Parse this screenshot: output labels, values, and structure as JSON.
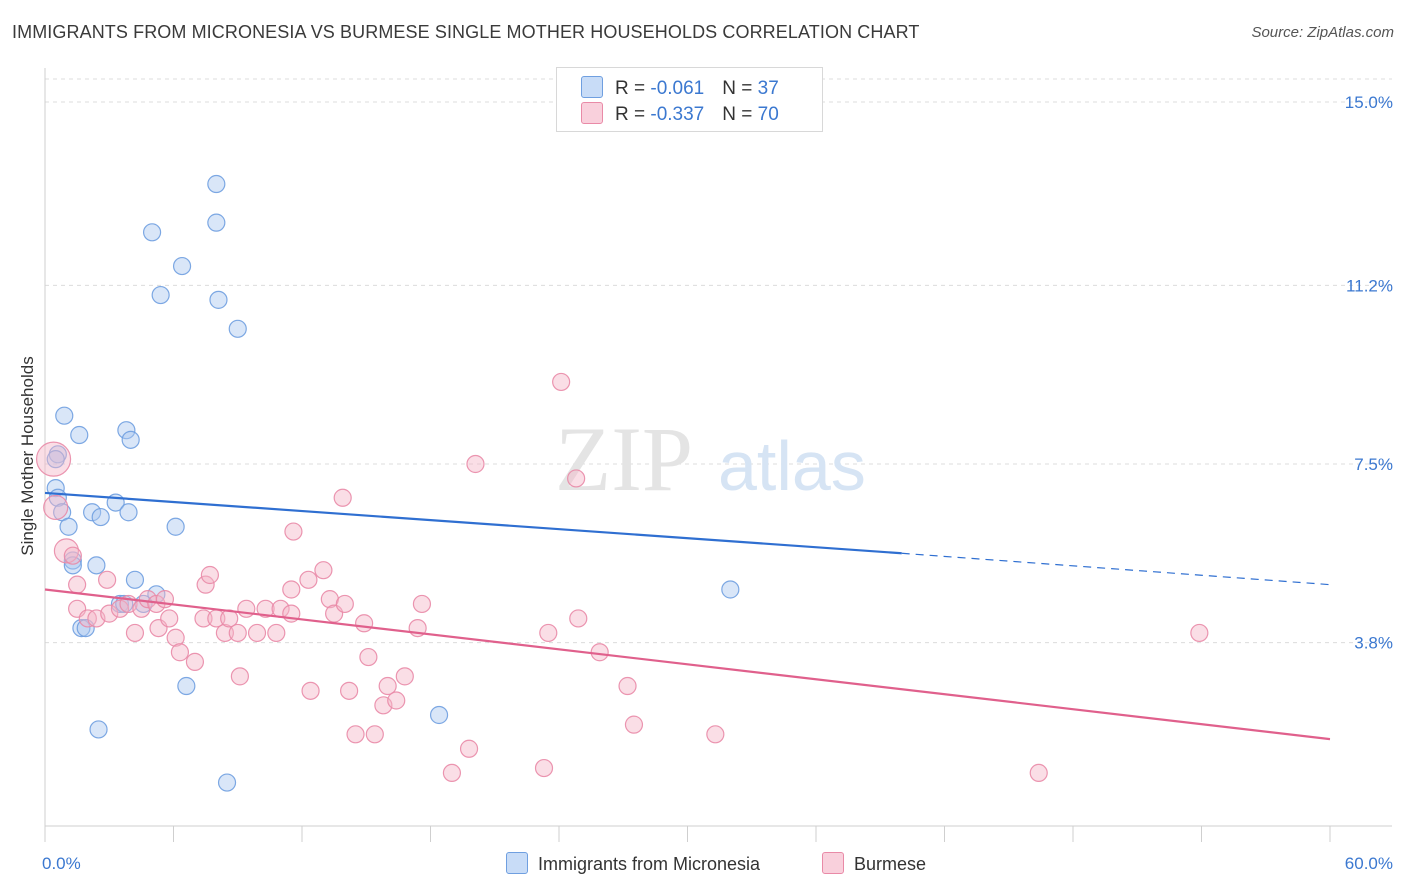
{
  "title": "IMMIGRANTS FROM MICRONESIA VS BURMESE SINGLE MOTHER HOUSEHOLDS CORRELATION CHART",
  "source": "Source: ZipAtlas.com",
  "watermark": {
    "zip": "ZIP",
    "atlas": "atlas"
  },
  "colors": {
    "blue_fill": "#aac8f0",
    "blue_stroke": "#6f9fe0",
    "blue_line": "#2f6fd1",
    "pink_fill": "#f5b6c8",
    "pink_stroke": "#e98aa7",
    "pink_line": "#e0608c",
    "axis_text": "#3b78d0",
    "grid": "#dcdcdc"
  },
  "legend_top": {
    "rows": [
      {
        "r_label": "R = ",
        "r_value": "-0.061",
        "n_label": "N = ",
        "n_value": "37",
        "color": "#aac8f0",
        "border": "#6f9fe0"
      },
      {
        "r_label": "R = ",
        "r_value": "-0.337",
        "n_label": "N = ",
        "n_value": "70",
        "color": "#f9c9d6",
        "border": "#e98aa7"
      }
    ]
  },
  "legend_bottom": [
    {
      "label": "Immigrants from Micronesia",
      "color": "#aac8f0",
      "border": "#6f9fe0"
    },
    {
      "label": "Burmese",
      "color": "#f9c9d6",
      "border": "#e98aa7"
    }
  ],
  "chart_data": {
    "type": "scatter",
    "title": "IMMIGRANTS FROM MICRONESIA VS BURMESE SINGLE MOTHER HOUSEHOLDS CORRELATION CHART",
    "xlabel": "",
    "ylabel": "Single Mother Households",
    "xlim": [
      0,
      60
    ],
    "ylim": [
      0,
      15.6
    ],
    "x_tick_labels": [
      "0.0%",
      "60.0%"
    ],
    "y_ticks": [
      3.8,
      7.5,
      11.2,
      15.0
    ],
    "y_tick_labels": [
      "3.8%",
      "7.5%",
      "11.2%",
      "15.0%"
    ],
    "grid": true,
    "legend_position": "top-center",
    "series": [
      {
        "name": "Immigrants from Micronesia",
        "points": [
          [
            8.0,
            13.3
          ],
          [
            8.0,
            12.5
          ],
          [
            5.0,
            12.3
          ],
          [
            6.4,
            11.6
          ],
          [
            5.4,
            11.0
          ],
          [
            8.1,
            10.9
          ],
          [
            9.0,
            10.3
          ],
          [
            0.9,
            8.5
          ],
          [
            1.6,
            8.1
          ],
          [
            3.8,
            8.2
          ],
          [
            4.0,
            8.0
          ],
          [
            0.6,
            7.7
          ],
          [
            0.5,
            7.6
          ],
          [
            0.5,
            7.0
          ],
          [
            0.6,
            6.8
          ],
          [
            0.8,
            6.5
          ],
          [
            2.2,
            6.5
          ],
          [
            2.6,
            6.4
          ],
          [
            3.3,
            6.7
          ],
          [
            3.9,
            6.5
          ],
          [
            1.1,
            6.2
          ],
          [
            6.1,
            6.2
          ],
          [
            1.3,
            5.5
          ],
          [
            1.3,
            5.4
          ],
          [
            2.4,
            5.4
          ],
          [
            4.2,
            5.1
          ],
          [
            5.2,
            4.8
          ],
          [
            3.5,
            4.6
          ],
          [
            3.7,
            4.6
          ],
          [
            4.6,
            4.6
          ],
          [
            1.7,
            4.1
          ],
          [
            1.9,
            4.1
          ],
          [
            6.6,
            2.9
          ],
          [
            2.5,
            2.0
          ],
          [
            18.4,
            2.3
          ],
          [
            8.5,
            0.9
          ],
          [
            32.0,
            4.9
          ]
        ],
        "trend": {
          "x": [
            0,
            40
          ],
          "y": [
            6.9,
            5.65
          ],
          "dashed_to": [
            60,
            5.0
          ]
        }
      },
      {
        "name": "Burmese",
        "points": [
          [
            0.4,
            7.6
          ],
          [
            0.5,
            6.6
          ],
          [
            1.0,
            5.7
          ],
          [
            1.3,
            5.6
          ],
          [
            1.5,
            5.0
          ],
          [
            2.9,
            5.1
          ],
          [
            1.5,
            4.5
          ],
          [
            2.0,
            4.3
          ],
          [
            2.4,
            4.3
          ],
          [
            3.0,
            4.4
          ],
          [
            3.5,
            4.5
          ],
          [
            3.9,
            4.6
          ],
          [
            4.5,
            4.5
          ],
          [
            4.8,
            4.7
          ],
          [
            5.2,
            4.6
          ],
          [
            5.6,
            4.7
          ],
          [
            4.2,
            4.0
          ],
          [
            5.3,
            4.1
          ],
          [
            5.8,
            4.3
          ],
          [
            6.1,
            3.9
          ],
          [
            6.3,
            3.6
          ],
          [
            7.0,
            3.4
          ],
          [
            7.4,
            4.3
          ],
          [
            7.5,
            5.0
          ],
          [
            7.7,
            5.2
          ],
          [
            8.0,
            4.3
          ],
          [
            8.4,
            4.0
          ],
          [
            8.6,
            4.3
          ],
          [
            9.0,
            4.0
          ],
          [
            9.1,
            3.1
          ],
          [
            9.4,
            4.5
          ],
          [
            9.9,
            4.0
          ],
          [
            10.3,
            4.5
          ],
          [
            10.8,
            4.0
          ],
          [
            11.0,
            4.5
          ],
          [
            11.5,
            4.9
          ],
          [
            11.5,
            4.4
          ],
          [
            11.6,
            6.1
          ],
          [
            12.3,
            5.1
          ],
          [
            12.4,
            2.8
          ],
          [
            13.0,
            5.3
          ],
          [
            13.3,
            4.7
          ],
          [
            13.5,
            4.4
          ],
          [
            14.0,
            4.6
          ],
          [
            13.9,
            6.8
          ],
          [
            14.2,
            2.8
          ],
          [
            14.5,
            1.9
          ],
          [
            14.9,
            4.2
          ],
          [
            15.1,
            3.5
          ],
          [
            15.4,
            1.9
          ],
          [
            15.8,
            2.5
          ],
          [
            16.0,
            2.9
          ],
          [
            16.4,
            2.6
          ],
          [
            16.8,
            3.1
          ],
          [
            17.4,
            4.1
          ],
          [
            17.6,
            4.6
          ],
          [
            19.0,
            1.1
          ],
          [
            20.1,
            7.5
          ],
          [
            19.8,
            1.6
          ],
          [
            23.3,
            1.2
          ],
          [
            23.5,
            4.0
          ],
          [
            24.1,
            9.2
          ],
          [
            24.8,
            7.2
          ],
          [
            24.9,
            4.3
          ],
          [
            25.9,
            3.6
          ],
          [
            27.2,
            2.9
          ],
          [
            27.5,
            2.1
          ],
          [
            31.3,
            1.9
          ],
          [
            46.4,
            1.1
          ],
          [
            53.9,
            4.0
          ]
        ],
        "trend": {
          "x": [
            0,
            60
          ],
          "y": [
            4.9,
            1.8
          ]
        }
      }
    ]
  }
}
